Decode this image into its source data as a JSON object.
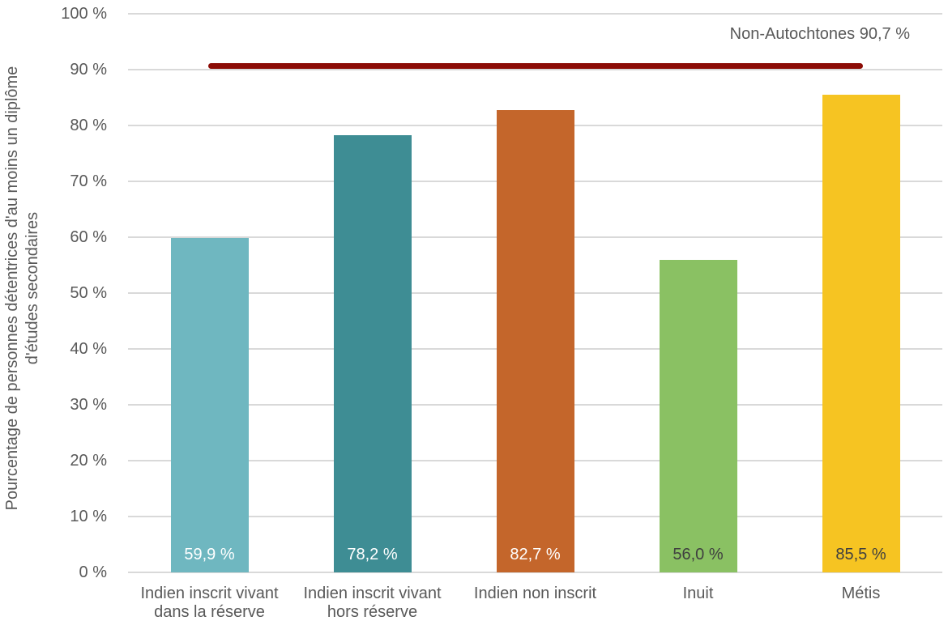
{
  "chart_data": {
    "type": "bar",
    "title": "",
    "ylabel_line1": "Pourcentage de personnes détentrices d'au moins un diplôme",
    "ylabel_line2": "d'études secondaires",
    "ylim": [
      0,
      100
    ],
    "grid": true,
    "yticks": [
      {
        "value": 0,
        "label": "0 %"
      },
      {
        "value": 10,
        "label": "10 %"
      },
      {
        "value": 20,
        "label": "20 %"
      },
      {
        "value": 30,
        "label": "30 %"
      },
      {
        "value": 40,
        "label": "40 %"
      },
      {
        "value": 50,
        "label": "50 %"
      },
      {
        "value": 60,
        "label": "60 %"
      },
      {
        "value": 70,
        "label": "70 %"
      },
      {
        "value": 80,
        "label": "80 %"
      },
      {
        "value": 90,
        "label": "90 %"
      },
      {
        "value": 100,
        "label": "100 %"
      }
    ],
    "categories": [
      {
        "label_lines": [
          "Indien inscrit vivant",
          "dans la réserve"
        ],
        "value": 59.9,
        "value_label": "59,9 %",
        "bar_color": "#6fb7c0",
        "value_label_color": "#ffffff"
      },
      {
        "label_lines": [
          "Indien inscrit vivant",
          "hors réserve"
        ],
        "value": 78.2,
        "value_label": "78,2 %",
        "bar_color": "#3e8d94",
        "value_label_color": "#ffffff"
      },
      {
        "label_lines": [
          "Indien non inscrit"
        ],
        "value": 82.7,
        "value_label": "82,7 %",
        "bar_color": "#c4662b",
        "value_label_color": "#ffffff"
      },
      {
        "label_lines": [
          "Inuit"
        ],
        "value": 56.0,
        "value_label": "56,0 %",
        "bar_color": "#8ac163",
        "value_label_color": "#404040"
      },
      {
        "label_lines": [
          "Métis"
        ],
        "value": 85.5,
        "value_label": "85,5 %",
        "bar_color": "#f6c422",
        "value_label_color": "#404040"
      }
    ],
    "reference_line": {
      "label": "Non-Autochtones 90,7 %",
      "value": 90.7,
      "color": "#8c0c06"
    },
    "colors": {
      "text": "#595959",
      "gridline": "#d9d9d9",
      "background": "#ffffff"
    },
    "legend": "none"
  }
}
